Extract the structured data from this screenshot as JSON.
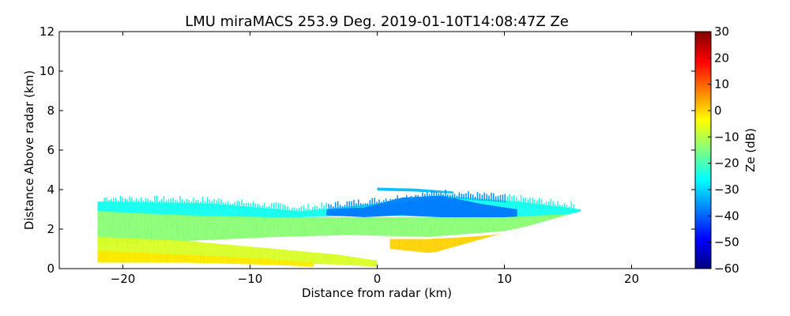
{
  "chart_data": {
    "type": "heatmap",
    "title": "LMU miraMACS 253.9 Deg. 2019-01-10T14:08:47Z  Ze",
    "xlabel": "Distance from radar (km)",
    "ylabel": "Distance Above radar  (km)",
    "xlim": [
      -25,
      25
    ],
    "ylim": [
      0,
      12
    ],
    "xticks": [
      -20,
      -10,
      0,
      10,
      20
    ],
    "xtick_labels": [
      "−20",
      "−10",
      "0",
      "10",
      "20"
    ],
    "yticks": [
      0,
      2,
      4,
      6,
      8,
      10,
      12
    ],
    "ytick_labels": [
      "0",
      "2",
      "4",
      "6",
      "8",
      "10",
      "12"
    ],
    "colorbar": {
      "label": "Ze (dB)",
      "range": [
        -60,
        30
      ],
      "colormap": "jet",
      "ticks": [
        30,
        20,
        10,
        0,
        -10,
        -20,
        -30,
        -40,
        -50,
        -60
      ],
      "tick_labels": [
        "30",
        "20",
        "10",
        "0",
        "−10",
        "−20",
        "−30",
        "−40",
        "−50",
        "−60"
      ],
      "colors": [
        "#00007f",
        "#0000ff",
        "#007fff",
        "#00ffff",
        "#7fff7f",
        "#ffff00",
        "#ff7f00",
        "#ff0000",
        "#7f0000"
      ]
    },
    "scan": {
      "left_edge_x": -22,
      "left_top_y": 3.4,
      "right_edge_x": 16.5,
      "right_edge_y": 3.0,
      "radar_x": 0,
      "radar_y": 0
    },
    "field_layers": [
      {
        "name": "cloud-top",
        "x": [
          -22,
          -13,
          -6,
          0,
          5,
          11,
          16
        ],
        "y_top": [
          3.4,
          3.3,
          2.9,
          3.3,
          3.7,
          3.4,
          3.0
        ],
        "y_bot": [
          2.9,
          2.6,
          2.6,
          2.7,
          2.6,
          2.6,
          2.7
        ],
        "ze": -25
      },
      {
        "name": "cloud-top-dense",
        "x": [
          -4,
          -1,
          2,
          5,
          8,
          11
        ],
        "y_top": [
          3.0,
          3.1,
          3.6,
          3.7,
          3.3,
          3.0
        ],
        "y_bot": [
          2.7,
          2.6,
          2.7,
          2.6,
          2.6,
          2.6
        ],
        "ze": -38
      },
      {
        "name": "upper-layer",
        "x": [
          0,
          3,
          6
        ],
        "y_top": [
          4.1,
          4.05,
          3.9
        ],
        "y_bot": [
          3.95,
          3.9,
          3.8
        ],
        "ze": -32
      },
      {
        "name": "mid-cloud",
        "x": [
          -22,
          -15,
          -8,
          -2,
          4,
          10,
          16
        ],
        "y_top": [
          2.9,
          2.7,
          2.6,
          2.6,
          2.6,
          2.6,
          2.8
        ],
        "y_bot": [
          1.2,
          1.4,
          1.6,
          1.7,
          1.6,
          1.9,
          2.7
        ],
        "ze": -14
      },
      {
        "name": "lower-band",
        "x": [
          -22,
          -15,
          -8,
          -3,
          0
        ],
        "y_top": [
          1.6,
          1.4,
          1.0,
          0.7,
          0.4
        ],
        "y_bot": [
          0.3,
          0.3,
          0.3,
          0.2,
          0.1
        ],
        "ze": -7
      },
      {
        "name": "melting-layer",
        "x": [
          1,
          4,
          7,
          9,
          11
        ],
        "y_top": [
          1.5,
          1.5,
          1.6,
          1.7,
          1.9
        ],
        "y_bot": [
          1.0,
          0.8,
          1.0,
          1.3,
          1.7
        ],
        "ze": 0
      },
      {
        "name": "near-ground-strong",
        "x": [
          -22,
          -15,
          -9,
          -5
        ],
        "y_top": [
          0.9,
          0.7,
          0.5,
          0.3
        ],
        "y_bot": [
          0.3,
          0.3,
          0.2,
          0.1
        ],
        "ze": -2
      }
    ]
  }
}
